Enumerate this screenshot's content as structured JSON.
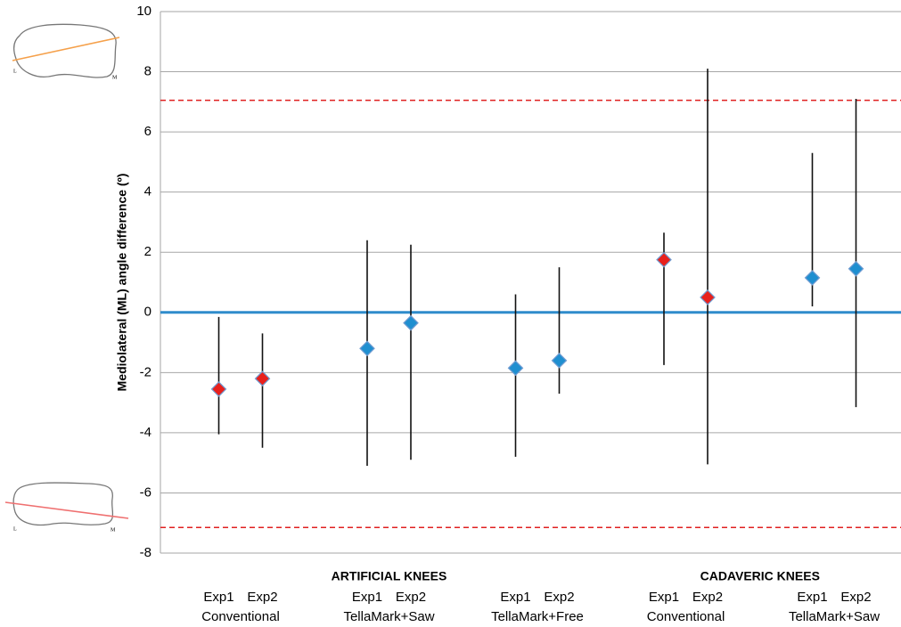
{
  "chart_data": {
    "type": "errorbar",
    "y_label": "Mediolateral (ML) angle difference (º)",
    "categories": [
      "Exp1",
      "Exp2",
      "Exp1",
      "Exp2",
      "Exp1",
      "Exp2",
      "Exp1",
      "Exp2",
      "Exp1",
      "Exp2"
    ],
    "groups": [
      "Conventional",
      "TellaMark+Saw",
      "TellaMark+Free",
      "Conventional",
      "TellaMark+Saw"
    ],
    "sections": [
      "ARTIFICIAL KNEES",
      "CADAVERIC KNEES"
    ],
    "values": [
      -2.55,
      -2.2,
      -1.2,
      -0.35,
      -1.85,
      -1.6,
      1.75,
      0.5,
      1.15,
      1.45
    ],
    "low": [
      -4.05,
      -4.5,
      -5.1,
      -4.9,
      -4.8,
      -2.7,
      -1.75,
      -5.05,
      0.2,
      -3.15
    ],
    "high": [
      -0.15,
      -0.7,
      2.4,
      2.25,
      0.6,
      1.5,
      2.65,
      8.1,
      5.3,
      7.1
    ],
    "colors": [
      "#e8201c",
      "#e8201c",
      "#1f8fd0",
      "#1f8fd0",
      "#1f8fd0",
      "#1f8fd0",
      "#e8201c",
      "#e8201c",
      "#1f8fd0",
      "#1f8fd0"
    ],
    "ref_lines": [
      {
        "value": 7.05,
        "color": "#e02020",
        "style": "dashed"
      },
      {
        "value": -7.15,
        "color": "#e02020",
        "style": "dashed"
      },
      {
        "value": 0,
        "color": "#2f8ccb",
        "style": "solid"
      }
    ],
    "ylim": [
      -8,
      10
    ],
    "yticks": [
      -8,
      -6,
      -4,
      -2,
      0,
      2,
      4,
      6,
      8,
      10
    ],
    "grid": true,
    "diagrams": [
      {
        "left": "L",
        "right": "M"
      },
      {
        "left": "L",
        "right": "M"
      }
    ]
  }
}
